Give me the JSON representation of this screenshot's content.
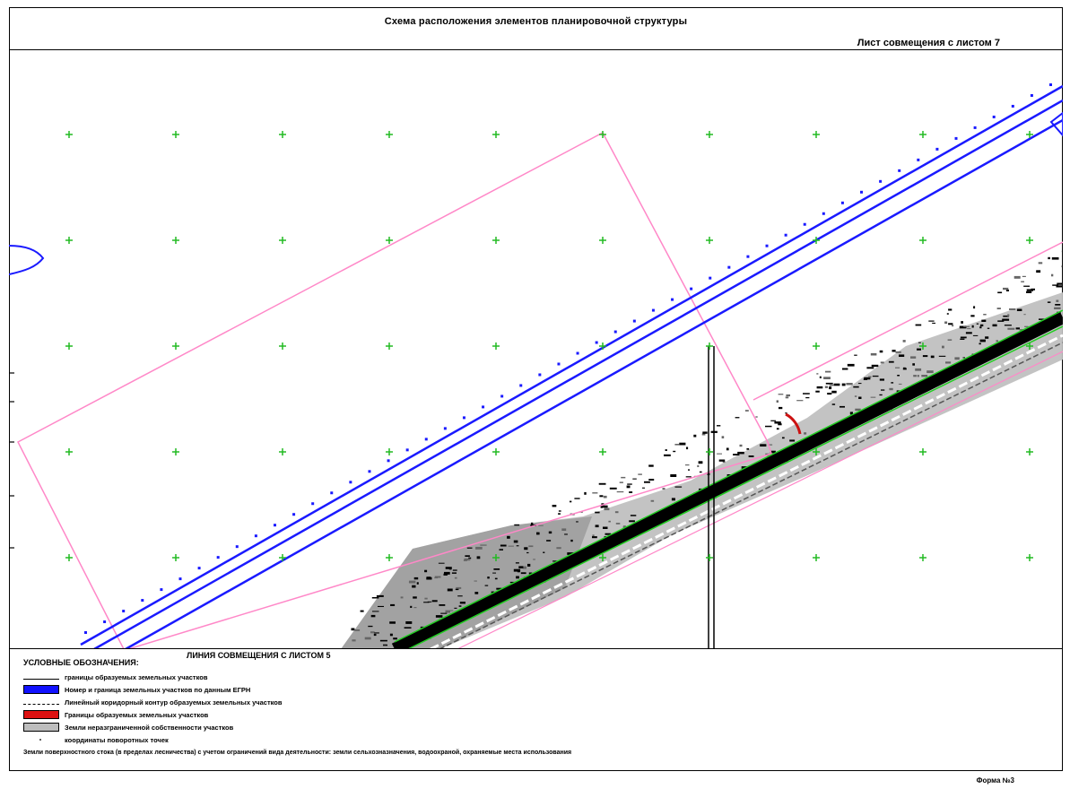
{
  "title": "Схема расположения элементов планировочной структуры",
  "sheet_note": "Лист совмещения с листом 7",
  "join_bottom": "ЛИНИЯ СОВМЕЩЕНИЯ С ЛИСТОМ 5",
  "legend": {
    "title": "УСЛОВНЫЕ ОБОЗНАЧЕНИЯ:",
    "items": [
      {
        "icon": "black-line",
        "label": "границы образуемых земельных участков"
      },
      {
        "icon": "blue-band",
        "label": "Номер и граница земельных участков по данным ЕГРН"
      },
      {
        "icon": "dashed-line",
        "label": "Линейный коридорный контур образуемых земельных участков"
      },
      {
        "icon": "red-band",
        "label": "Границы образуемых земельных участков"
      },
      {
        "icon": "gray-band",
        "label": "Земли неразграниченной собственности участков"
      },
      {
        "icon": "dot",
        "label": "координаты поворотных точек"
      }
    ],
    "note": "Земли поверхностного стока (в пределах лесничества) с учетом ограничений вида деятельности: земли сельхозназначения, водоохраной, охраняемые места использования"
  },
  "form_label": "Форма №3",
  "colors": {
    "boundary_pink": "#ff88c8",
    "road_blue": "#1a1aff",
    "grid_green": "#22bb22",
    "road_dark": "#000000",
    "road_green": "#22cc22",
    "ground_gray": "#bdbdbd"
  }
}
